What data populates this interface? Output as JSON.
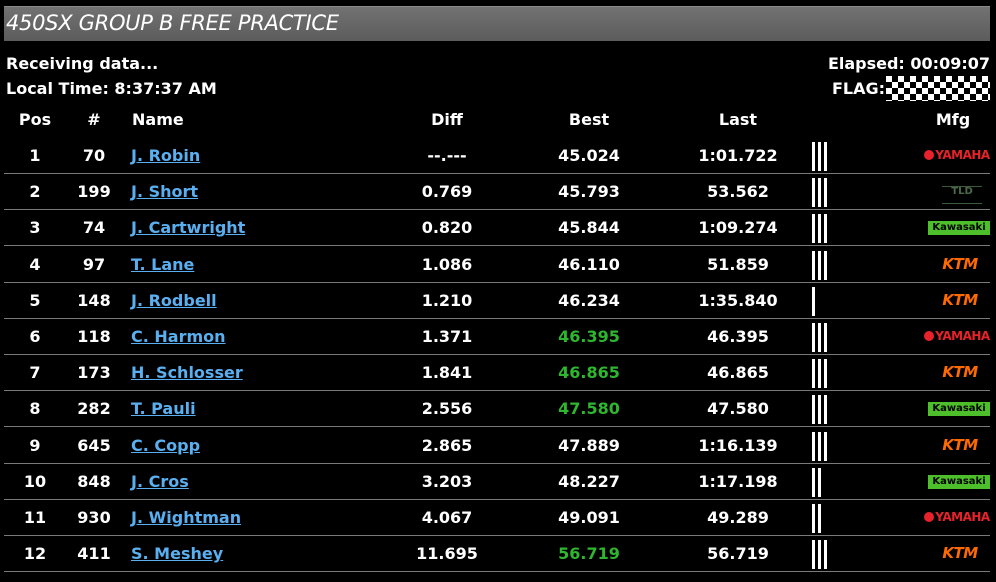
{
  "header": {
    "title": "450SX GROUP B FREE PRACTICE",
    "status": "Receiving data...",
    "local_time": "Local Time: 8:37:37 AM",
    "elapsed": "Elapsed: 00:09:07",
    "flag_label": "FLAG:",
    "flag_type": "checkered-flag-icon"
  },
  "columns": {
    "pos": "Pos",
    "num": "#",
    "name": "Name",
    "diff": "Diff",
    "best": "Best",
    "last": "Last",
    "mfg": "Mfg"
  },
  "colors": {
    "link": "#5aaff0",
    "best_highlight": "#2fb62f",
    "row_separator": "#7a7a7a"
  },
  "rows": [
    {
      "pos": "1",
      "num": "70",
      "name": "J. Robin",
      "diff": "--.---",
      "best": "45.024",
      "last": "1:01.722",
      "laps": 3,
      "best_highlight": false,
      "mfg": "YAMAHA",
      "mfg_icon": "yamaha-logo-icon"
    },
    {
      "pos": "2",
      "num": "199",
      "name": "J. Short",
      "diff": "0.769",
      "best": "45.793",
      "last": "53.562",
      "laps": 3,
      "best_highlight": false,
      "mfg": "TLD",
      "mfg_icon": "tld-logo-icon"
    },
    {
      "pos": "3",
      "num": "74",
      "name": "J. Cartwright",
      "diff": "0.820",
      "best": "45.844",
      "last": "1:09.274",
      "laps": 3,
      "best_highlight": false,
      "mfg": "Kawasaki",
      "mfg_icon": "kawasaki-logo-icon"
    },
    {
      "pos": "4",
      "num": "97",
      "name": "T. Lane",
      "diff": "1.086",
      "best": "46.110",
      "last": "51.859",
      "laps": 3,
      "best_highlight": false,
      "mfg": "KTM",
      "mfg_icon": "ktm-logo-icon"
    },
    {
      "pos": "5",
      "num": "148",
      "name": "J. Rodbell",
      "diff": "1.210",
      "best": "46.234",
      "last": "1:35.840",
      "laps": 1,
      "best_highlight": false,
      "mfg": "KTM",
      "mfg_icon": "ktm-logo-icon"
    },
    {
      "pos": "6",
      "num": "118",
      "name": "C. Harmon",
      "diff": "1.371",
      "best": "46.395",
      "last": "46.395",
      "laps": 3,
      "best_highlight": true,
      "mfg": "YAMAHA",
      "mfg_icon": "yamaha-logo-icon"
    },
    {
      "pos": "7",
      "num": "173",
      "name": "H. Schlosser",
      "diff": "1.841",
      "best": "46.865",
      "last": "46.865",
      "laps": 3,
      "best_highlight": true,
      "mfg": "KTM",
      "mfg_icon": "ktm-logo-icon"
    },
    {
      "pos": "8",
      "num": "282",
      "name": "T. Pauli",
      "diff": "2.556",
      "best": "47.580",
      "last": "47.580",
      "laps": 3,
      "best_highlight": true,
      "mfg": "Kawasaki",
      "mfg_icon": "kawasaki-logo-icon"
    },
    {
      "pos": "9",
      "num": "645",
      "name": "C. Copp",
      "diff": "2.865",
      "best": "47.889",
      "last": "1:16.139",
      "laps": 3,
      "best_highlight": false,
      "mfg": "KTM",
      "mfg_icon": "ktm-logo-icon"
    },
    {
      "pos": "10",
      "num": "848",
      "name": "J. Cros",
      "diff": "3.203",
      "best": "48.227",
      "last": "1:17.198",
      "laps": 2,
      "best_highlight": false,
      "mfg": "Kawasaki",
      "mfg_icon": "kawasaki-logo-icon"
    },
    {
      "pos": "11",
      "num": "930",
      "name": "J. Wightman",
      "diff": "4.067",
      "best": "49.091",
      "last": "49.289",
      "laps": 2,
      "best_highlight": false,
      "mfg": "YAMAHA",
      "mfg_icon": "yamaha-logo-icon"
    },
    {
      "pos": "12",
      "num": "411",
      "name": "S. Meshey",
      "diff": "11.695",
      "best": "56.719",
      "last": "56.719",
      "laps": 3,
      "best_highlight": true,
      "mfg": "KTM",
      "mfg_icon": "ktm-logo-icon"
    }
  ]
}
